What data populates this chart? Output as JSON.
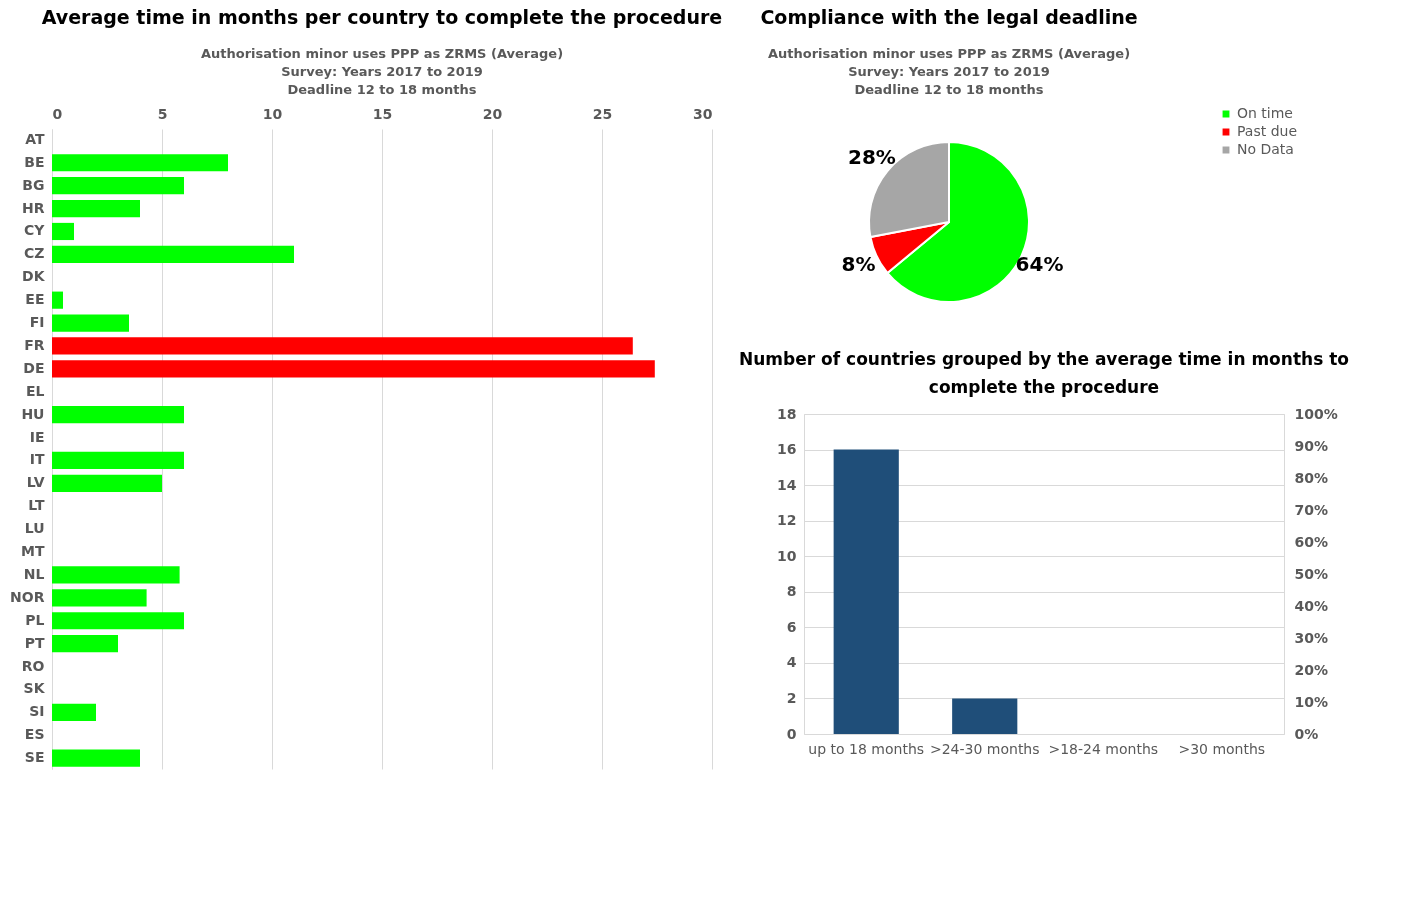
{
  "chart_data": [
    {
      "type": "bar",
      "orientation": "horizontal",
      "title": "Average time in months per country to complete the procedure",
      "subtitle": "Authorisation minor uses PPP as ZRMS  (Average)\nSurvey: Years 2017 to 2019\nDeadline 12 to 18 months",
      "categories": [
        "AT",
        "BE",
        "BG",
        "HR",
        "CY",
        "CZ",
        "DK",
        "EE",
        "FI",
        "FR",
        "DE",
        "EL",
        "HU",
        "IE",
        "IT",
        "LV",
        "LT",
        "LU",
        "MT",
        "NL",
        "NOR",
        "PL",
        "PT",
        "RO",
        "SK",
        "SI",
        "ES",
        "SE"
      ],
      "values": [
        null,
        8,
        6,
        4,
        1,
        11,
        null,
        0.5,
        3.5,
        26.4,
        27.4,
        null,
        6,
        null,
        6,
        5,
        null,
        null,
        null,
        5.8,
        4.3,
        6,
        3,
        null,
        null,
        2,
        null,
        4
      ],
      "colors": [
        "#00ff00",
        "#00ff00",
        "#00ff00",
        "#00ff00",
        "#00ff00",
        "#00ff00",
        "#00ff00",
        "#00ff00",
        "#00ff00",
        "#ff0000",
        "#ff0000",
        "#00ff00",
        "#00ff00",
        "#00ff00",
        "#00ff00",
        "#00ff00",
        "#00ff00",
        "#00ff00",
        "#00ff00",
        "#00ff00",
        "#00ff00",
        "#00ff00",
        "#00ff00",
        "#00ff00",
        "#00ff00",
        "#00ff00",
        "#00ff00",
        "#00ff00"
      ],
      "xlim": [
        0,
        30
      ],
      "xticks": [
        0,
        5,
        10,
        15,
        20,
        25,
        30
      ],
      "grid": "x"
    },
    {
      "type": "pie",
      "title": "Compliance with the legal deadline",
      "subtitle": "Authorisation minor uses PPP as ZRMS  (Average)\nSurvey: Years 2017 to 2019\nDeadline 12 to 18 months",
      "categories": [
        "On time",
        "Past due",
        "No Data"
      ],
      "values": [
        64,
        8,
        28
      ],
      "colors": [
        "#00ff00",
        "#ff0000",
        "#a6a6a6"
      ],
      "value_labels": [
        "64%",
        "8%",
        "28%"
      ],
      "legend": "right"
    },
    {
      "type": "bar",
      "title": "Number of countries grouped by the average time in months to complete the procedure",
      "categories": [
        "up to 18 months",
        ">24-30 months",
        ">18-24 months",
        ">30 months"
      ],
      "values": [
        16,
        2,
        0,
        0
      ],
      "color": "#1f4e79",
      "ylim": [
        0,
        18
      ],
      "yticks": [
        0,
        2,
        4,
        6,
        8,
        10,
        12,
        14,
        16,
        18
      ],
      "y2lim": [
        0,
        100
      ],
      "y2ticks": [
        {
          "value": 0,
          "label": "0%"
        },
        {
          "value": 10,
          "label": "10%"
        },
        {
          "value": 20,
          "label": "20%"
        },
        {
          "value": 30,
          "label": "30%"
        },
        {
          "value": 40,
          "label": "40%"
        },
        {
          "value": 50,
          "label": "50%"
        },
        {
          "value": 60,
          "label": "60%"
        },
        {
          "value": 70,
          "label": "70%"
        },
        {
          "value": 80,
          "label": "80%"
        },
        {
          "value": 90,
          "label": "90%"
        },
        {
          "value": 100,
          "label": "100%"
        }
      ],
      "grid": "y"
    }
  ]
}
